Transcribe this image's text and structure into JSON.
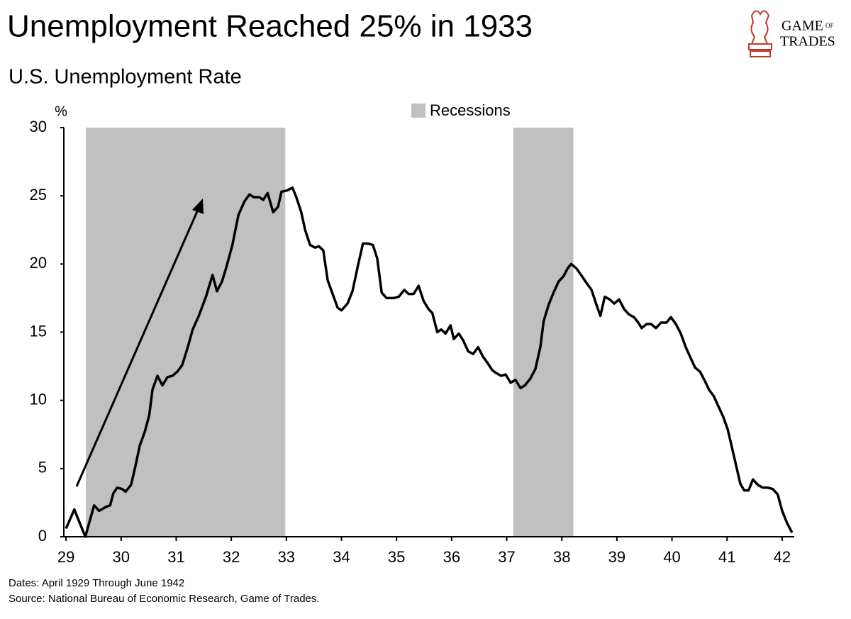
{
  "chart_data": {
    "type": "line",
    "title": "Unemployment Reached 25% in 1933",
    "subtitle": "U.S. Unemployment Rate",
    "y_unit_label": "%",
    "logo": [
      "GAME",
      "OF",
      "TRADES"
    ],
    "notes": [
      "Dates: April 1929 Through June 1942",
      "Source: National Bureau of Economic Research, Game of Trades."
    ],
    "color": "#000000",
    "recessions": {
      "name": "Recessions",
      "color": "#c0c0c0",
      "spans": [
        [
          29.36,
          32.98
        ],
        [
          37.12,
          38.21
        ]
      ]
    },
    "xlim": [
      28.96,
      42.22
    ],
    "xticks": [
      29,
      30,
      31,
      32,
      33,
      34,
      35,
      36,
      37,
      38,
      39,
      40,
      41,
      42
    ],
    "ylim": [
      0,
      30
    ],
    "yticks": [
      0,
      5,
      10,
      15,
      20,
      25,
      30
    ],
    "grid": false,
    "x": [
      29.0,
      29.15,
      29.26,
      29.35,
      29.51,
      29.6,
      29.73,
      29.8,
      29.86,
      29.93,
      30.02,
      30.08,
      30.18,
      30.25,
      30.34,
      30.43,
      30.51,
      30.57,
      30.66,
      30.75,
      30.84,
      30.93,
      31.02,
      31.11,
      31.21,
      31.3,
      31.41,
      31.54,
      31.66,
      31.74,
      31.83,
      31.92,
      32.02,
      32.13,
      32.24,
      32.33,
      32.41,
      32.51,
      32.58,
      32.66,
      32.76,
      32.85,
      32.91,
      33.02,
      33.11,
      33.18,
      33.27,
      33.34,
      33.43,
      33.52,
      33.59,
      33.67,
      33.75,
      33.84,
      33.93,
      34.0,
      34.11,
      34.2,
      34.3,
      34.39,
      34.48,
      34.57,
      34.65,
      34.73,
      34.82,
      34.95,
      35.04,
      35.14,
      35.22,
      35.31,
      35.4,
      35.49,
      35.58,
      35.65,
      35.74,
      35.81,
      35.89,
      35.98,
      36.04,
      36.13,
      36.21,
      36.3,
      36.39,
      36.48,
      36.57,
      36.66,
      36.74,
      36.81,
      36.9,
      36.98,
      37.07,
      37.16,
      37.25,
      37.33,
      37.43,
      37.52,
      37.61,
      37.67,
      37.76,
      37.85,
      37.94,
      38.03,
      38.11,
      38.17,
      38.26,
      38.35,
      38.45,
      38.54,
      38.63,
      38.7,
      38.78,
      38.87,
      38.95,
      39.04,
      39.13,
      39.22,
      39.31,
      39.39,
      39.45,
      39.54,
      39.62,
      39.71,
      39.8,
      39.9,
      39.98,
      40.07,
      40.16,
      40.25,
      40.34,
      40.42,
      40.51,
      40.6,
      40.67,
      40.76,
      40.85,
      40.93,
      41.01,
      41.08,
      41.16,
      41.24,
      41.31,
      41.39,
      41.47,
      41.56,
      41.65,
      41.74,
      41.83,
      41.92,
      42.0,
      42.09,
      42.18
    ],
    "values": [
      0.6,
      2.0,
      0.9,
      0,
      2.3,
      1.9,
      2.2,
      2.3,
      3.2,
      3.6,
      3.5,
      3.3,
      3.8,
      5.0,
      6.7,
      7.7,
      8.9,
      10.8,
      11.8,
      11.1,
      11.7,
      11.8,
      12.1,
      12.6,
      13.9,
      15.2,
      16.2,
      17.6,
      19.2,
      18.0,
      18.7,
      19.9,
      21.4,
      23.6,
      24.6,
      25.1,
      24.9,
      24.9,
      24.7,
      25.2,
      23.8,
      24.2,
      25.3,
      25.4,
      25.6,
      24.9,
      23.8,
      22.5,
      21.4,
      21.2,
      21.3,
      21.0,
      18.8,
      17.8,
      16.8,
      16.6,
      17.1,
      18.0,
      19.9,
      21.5,
      21.5,
      21.4,
      20.4,
      17.9,
      17.5,
      17.5,
      17.6,
      18.1,
      17.8,
      17.8,
      18.4,
      17.3,
      16.7,
      16.4,
      15.0,
      15.2,
      14.9,
      15.5,
      14.5,
      14.9,
      14.4,
      13.6,
      13.4,
      13.9,
      13.2,
      12.7,
      12.2,
      12.0,
      11.8,
      11.9,
      11.3,
      11.5,
      10.9,
      11.1,
      11.6,
      12.3,
      13.9,
      15.8,
      17.0,
      17.9,
      18.7,
      19.1,
      19.7,
      20.0,
      19.7,
      19.2,
      18.6,
      18.1,
      17.0,
      16.2,
      17.6,
      17.4,
      17.1,
      17.4,
      16.7,
      16.3,
      16.1,
      15.7,
      15.3,
      15.6,
      15.6,
      15.3,
      15.7,
      15.7,
      16.1,
      15.6,
      14.9,
      13.9,
      13.1,
      12.4,
      12.1,
      11.4,
      10.8,
      10.3,
      9.5,
      8.8,
      7.9,
      6.7,
      5.3,
      3.9,
      3.4,
      3.4,
      4.2,
      3.8,
      3.6,
      3.6,
      3.5,
      3.1,
      1.9,
      1.0,
      0.3
    ]
  }
}
